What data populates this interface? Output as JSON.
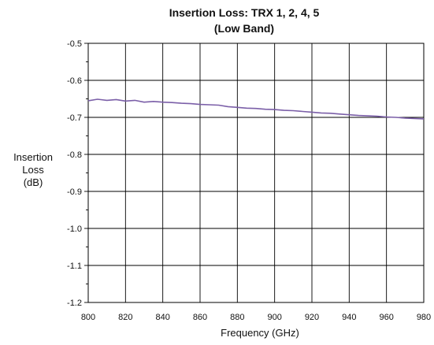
{
  "chart_data": {
    "type": "line",
    "title_line1": "Insertion Loss:  TRX 1, 2, 4, 5",
    "title_line2": "(Low Band)",
    "xlabel": "Frequency (GHz)",
    "ylabel_lines": [
      "Insertion",
      "Loss",
      "(dB)"
    ],
    "xlim": [
      800,
      980
    ],
    "ylim": [
      -1.2,
      -0.5
    ],
    "x_ticks": [
      800,
      820,
      840,
      860,
      880,
      900,
      920,
      940,
      960,
      980
    ],
    "y_ticks": [
      -0.5,
      -0.6,
      -0.7,
      -0.8,
      -0.9,
      -1.0,
      -1.1,
      -1.2
    ],
    "y_tick_labels": [
      "-0.5",
      "-0.6",
      "-0.7",
      "-0.8",
      "-0.9",
      "-1.0",
      "-1.1",
      "-1.2"
    ],
    "grid": true,
    "series": [
      {
        "color": "#7B5FA8",
        "x": [
          800,
          805,
          810,
          815,
          820,
          825,
          830,
          835,
          840,
          845,
          850,
          855,
          860,
          865,
          870,
          875,
          880,
          885,
          890,
          895,
          900,
          905,
          910,
          915,
          920,
          925,
          930,
          935,
          940,
          945,
          950,
          955,
          960,
          965,
          970,
          975,
          980
        ],
        "y": [
          -0.655,
          -0.651,
          -0.654,
          -0.652,
          -0.656,
          -0.654,
          -0.659,
          -0.657,
          -0.659,
          -0.66,
          -0.662,
          -0.663,
          -0.665,
          -0.666,
          -0.667,
          -0.671,
          -0.673,
          -0.675,
          -0.676,
          -0.678,
          -0.679,
          -0.681,
          -0.682,
          -0.684,
          -0.686,
          -0.688,
          -0.689,
          -0.691,
          -0.693,
          -0.695,
          -0.696,
          -0.697,
          -0.699,
          -0.7,
          -0.702,
          -0.703,
          -0.704
        ]
      }
    ]
  }
}
